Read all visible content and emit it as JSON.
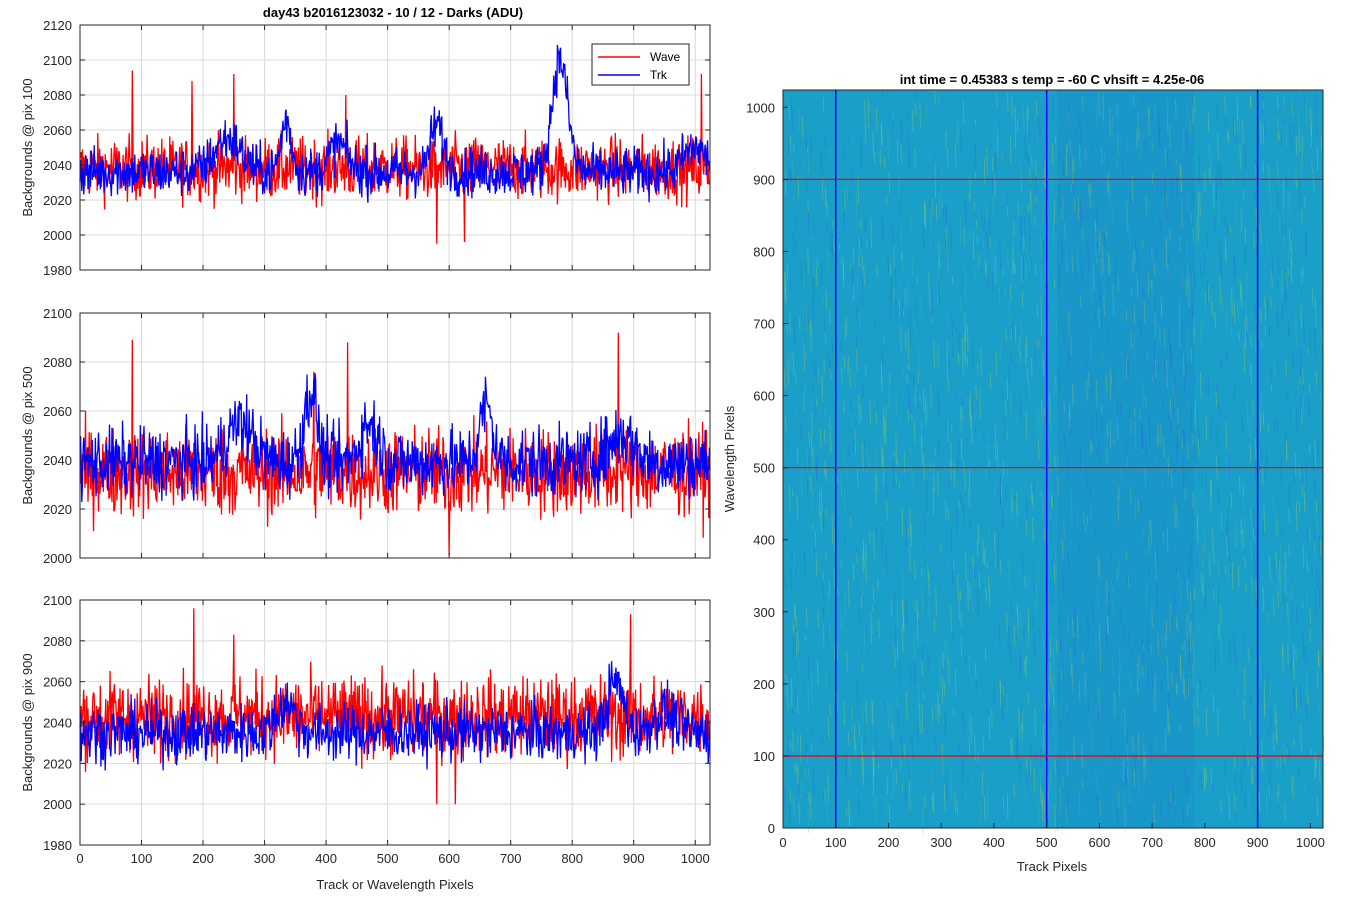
{
  "figure": {
    "left_title": "day43 b2016123032 - 10 / 12 - Darks (ADU)",
    "right_title": "int time = 0.45383 s    temp = -60 C    vhsift = 4.25e-06",
    "shared_xlabel": "Track or Wavelength Pixels"
  },
  "legend": {
    "entries": [
      "Wave",
      "Trk"
    ],
    "location": "top-right"
  },
  "colors": {
    "wave": "#ff0000",
    "trk": "#0000ff",
    "grid": "#d9d9d9",
    "axis": "#262626",
    "image_base": "#1aa0c8",
    "image_light": "#b6d94a",
    "image_dark": "#1f5bd6"
  },
  "chart_data": [
    {
      "type": "line",
      "title": "day43 b2016123032 - 10 / 12 - Darks (ADU)",
      "ylabel": "Backgrounds @ pix 100",
      "xlabel": "",
      "xlim": [
        0,
        1024
      ],
      "ylim": [
        1980,
        2120
      ],
      "grid": true,
      "xticks": [
        "0",
        "100",
        "200",
        "300",
        "400",
        "500",
        "600",
        "700",
        "800",
        "900",
        "1000"
      ],
      "yticks": [
        "1980",
        "2000",
        "2020",
        "2040",
        "2060",
        "2080",
        "2100",
        "2120"
      ],
      "series": [
        {
          "name": "Wave",
          "mean": 2038,
          "noise": 9,
          "features": [
            [
              85,
              2094
            ],
            [
              182,
              2088
            ],
            [
              250,
              2092
            ],
            [
              432,
              2080
            ],
            [
              580,
              1995
            ],
            [
              625,
              1996
            ],
            [
              1010,
              2092
            ]
          ]
        },
        {
          "name": "Trk",
          "mean": 2036,
          "noise": 7,
          "bumps": [
            [
              240,
              2055,
              30
            ],
            [
              335,
              2065,
              12
            ],
            [
              420,
              2052,
              20
            ],
            [
              580,
              2063,
              15
            ],
            [
              780,
              2100,
              18
            ],
            [
              1000,
              2050,
              25
            ]
          ]
        }
      ]
    },
    {
      "type": "line",
      "ylabel": "Backgrounds @ pix 500",
      "xlabel": "",
      "xlim": [
        0,
        1024
      ],
      "ylim": [
        2000,
        2100
      ],
      "grid": true,
      "xticks": [
        "0",
        "100",
        "200",
        "300",
        "400",
        "500",
        "600",
        "700",
        "800",
        "900",
        "1000"
      ],
      "yticks": [
        "2000",
        "2020",
        "2040",
        "2060",
        "2080",
        "2100"
      ],
      "series": [
        {
          "name": "Wave",
          "mean": 2035,
          "noise": 9,
          "features": [
            [
              85,
              2089
            ],
            [
              380,
              2076
            ],
            [
              435,
              2088
            ],
            [
              600,
              2000
            ],
            [
              875,
              2092
            ]
          ]
        },
        {
          "name": "Trk",
          "mean": 2039,
          "noise": 7,
          "bumps": [
            [
              260,
              2055,
              30
            ],
            [
              375,
              2068,
              15
            ],
            [
              470,
              2055,
              20
            ],
            [
              660,
              2062,
              15
            ],
            [
              880,
              2050,
              30
            ]
          ]
        }
      ]
    },
    {
      "type": "line",
      "ylabel": "Backgrounds @ pix 900",
      "xlabel": "Track or Wavelength Pixels",
      "xlim": [
        0,
        1024
      ],
      "ylim": [
        1980,
        2100
      ],
      "grid": true,
      "xticks": [
        "0",
        "100",
        "200",
        "300",
        "400",
        "500",
        "600",
        "700",
        "800",
        "900",
        "1000"
      ],
      "yticks": [
        "1980",
        "2000",
        "2020",
        "2040",
        "2060",
        "2080",
        "2100"
      ],
      "series": [
        {
          "name": "Wave",
          "mean": 2043,
          "noise": 10,
          "features": [
            [
              185,
              2096
            ],
            [
              250,
              2083
            ],
            [
              580,
              2000
            ],
            [
              610,
              2000
            ],
            [
              895,
              2093
            ]
          ]
        },
        {
          "name": "Trk",
          "mean": 2035,
          "noise": 7,
          "bumps": [
            [
              335,
              2050,
              20
            ],
            [
              870,
              2060,
              18
            ],
            [
              950,
              2045,
              25
            ]
          ]
        }
      ]
    },
    {
      "type": "heatmap",
      "title": "int time = 0.45383 s    temp = -60 C    vhsift = 4.25e-06",
      "xlabel": "Track Pixels",
      "ylabel": "Wavelength Pixels",
      "xlim": [
        0,
        1024
      ],
      "ylim": [
        0,
        1024
      ],
      "xticks": [
        "0",
        "100",
        "200",
        "300",
        "400",
        "500",
        "600",
        "700",
        "800",
        "900",
        "1000"
      ],
      "yticks": [
        "0",
        "100",
        "200",
        "300",
        "400",
        "500",
        "600",
        "700",
        "800",
        "900",
        "1000"
      ],
      "vertical_markers": {
        "color": "blue",
        "x": [
          100,
          500,
          900
        ]
      },
      "horizontal_markers": {
        "color": "red",
        "y": [
          100,
          500,
          900
        ]
      }
    }
  ]
}
